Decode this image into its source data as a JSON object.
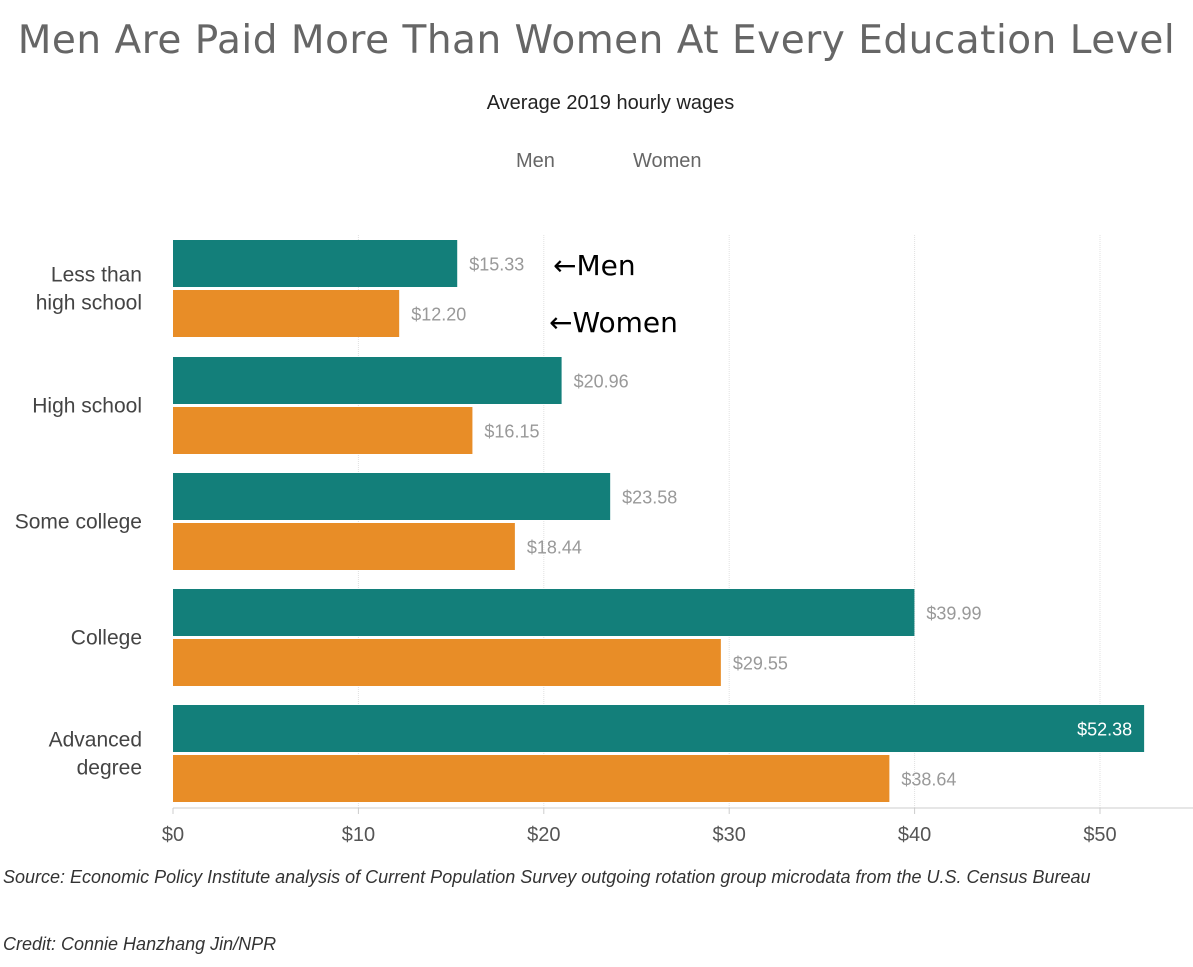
{
  "header": {
    "title": "Men Are Paid More Than Women At Every Education Level",
    "subtitle": "Average 2019 hourly wages"
  },
  "legend": {
    "men": "Men",
    "women": "Women"
  },
  "footer": {
    "source": "Source: Economic Policy Institute analysis of Current Population Survey outgoing rotation group microdata from the U.S. Census Bureau",
    "credit": "Credit: Connie Hanzhang Jin/NPR"
  },
  "annotations": {
    "men": "←Men",
    "women": "←Women"
  },
  "colors": {
    "men": "#137f7a",
    "women": "#e88d27",
    "grid": "#e0e0e0",
    "label": "#999999"
  },
  "chart_data": {
    "type": "bar",
    "orientation": "horizontal",
    "title": "Men Are Paid More Than Women At Every Education Level",
    "subtitle": "Average 2019 hourly wages",
    "categories": [
      [
        "Less than",
        "high school"
      ],
      [
        "High school"
      ],
      [
        "Some college"
      ],
      [
        "College"
      ],
      [
        "Advanced",
        "degree"
      ]
    ],
    "series": [
      {
        "name": "Men",
        "values": [
          15.33,
          20.96,
          23.58,
          39.99,
          52.38
        ],
        "labels": [
          "$15.33",
          "$20.96",
          "$23.58",
          "$39.99",
          "$52.38"
        ]
      },
      {
        "name": "Women",
        "values": [
          12.2,
          16.15,
          18.44,
          29.55,
          38.64
        ],
        "labels": [
          "$12.20",
          "$16.15",
          "$18.44",
          "$29.55",
          "$38.64"
        ]
      }
    ],
    "xlim": [
      0,
      55
    ],
    "xticks": [
      0,
      10,
      20,
      30,
      40,
      50
    ],
    "xtick_labels": [
      "$0",
      "$10",
      "$20",
      "$30",
      "$40",
      "$50"
    ],
    "grid": true,
    "legend_position": "top-center"
  }
}
